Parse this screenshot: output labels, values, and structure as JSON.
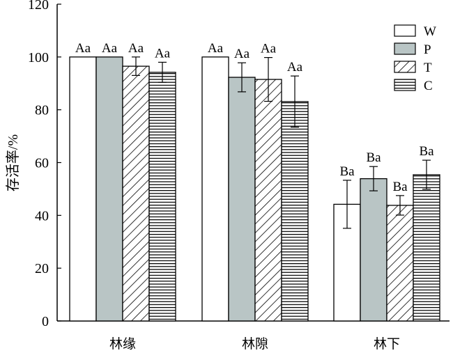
{
  "chart_data": {
    "type": "bar",
    "title": "",
    "xlabel": "",
    "ylabel": "存活率/%",
    "ylim": [
      0,
      120
    ],
    "yticks": [
      0,
      20,
      40,
      60,
      80,
      100,
      120
    ],
    "categories": [
      "林缘",
      "林隙",
      "林下"
    ],
    "legend_position": "top-right",
    "grid": false,
    "series": [
      {
        "name": "W",
        "fill": "#ffffff",
        "pattern": "none",
        "values": [
          100,
          100,
          44.2
        ],
        "errors": [
          0,
          0,
          9.1
        ],
        "labels": [
          "Aa",
          "Aa",
          "Ba"
        ]
      },
      {
        "name": "P",
        "fill": "#b9c5c5",
        "pattern": "none",
        "values": [
          100,
          92.3,
          53.9
        ],
        "errors": [
          0,
          5.5,
          4.6
        ],
        "labels": [
          "Aa",
          "Aa",
          "Ba"
        ]
      },
      {
        "name": "T",
        "fill": "#ffffff",
        "pattern": "diagonal",
        "values": [
          96.5,
          91.5,
          43.8
        ],
        "errors": [
          3.5,
          8.3,
          3.7
        ],
        "labels": [
          "Aa",
          "Aa",
          "Ba"
        ]
      },
      {
        "name": "C",
        "fill": "#ffffff",
        "pattern": "horizontal",
        "values": [
          94.2,
          83.1,
          55.4
        ],
        "errors": [
          3.8,
          9.7,
          5.5
        ],
        "labels": [
          "Aa",
          "Aa",
          "Ba"
        ]
      }
    ]
  }
}
